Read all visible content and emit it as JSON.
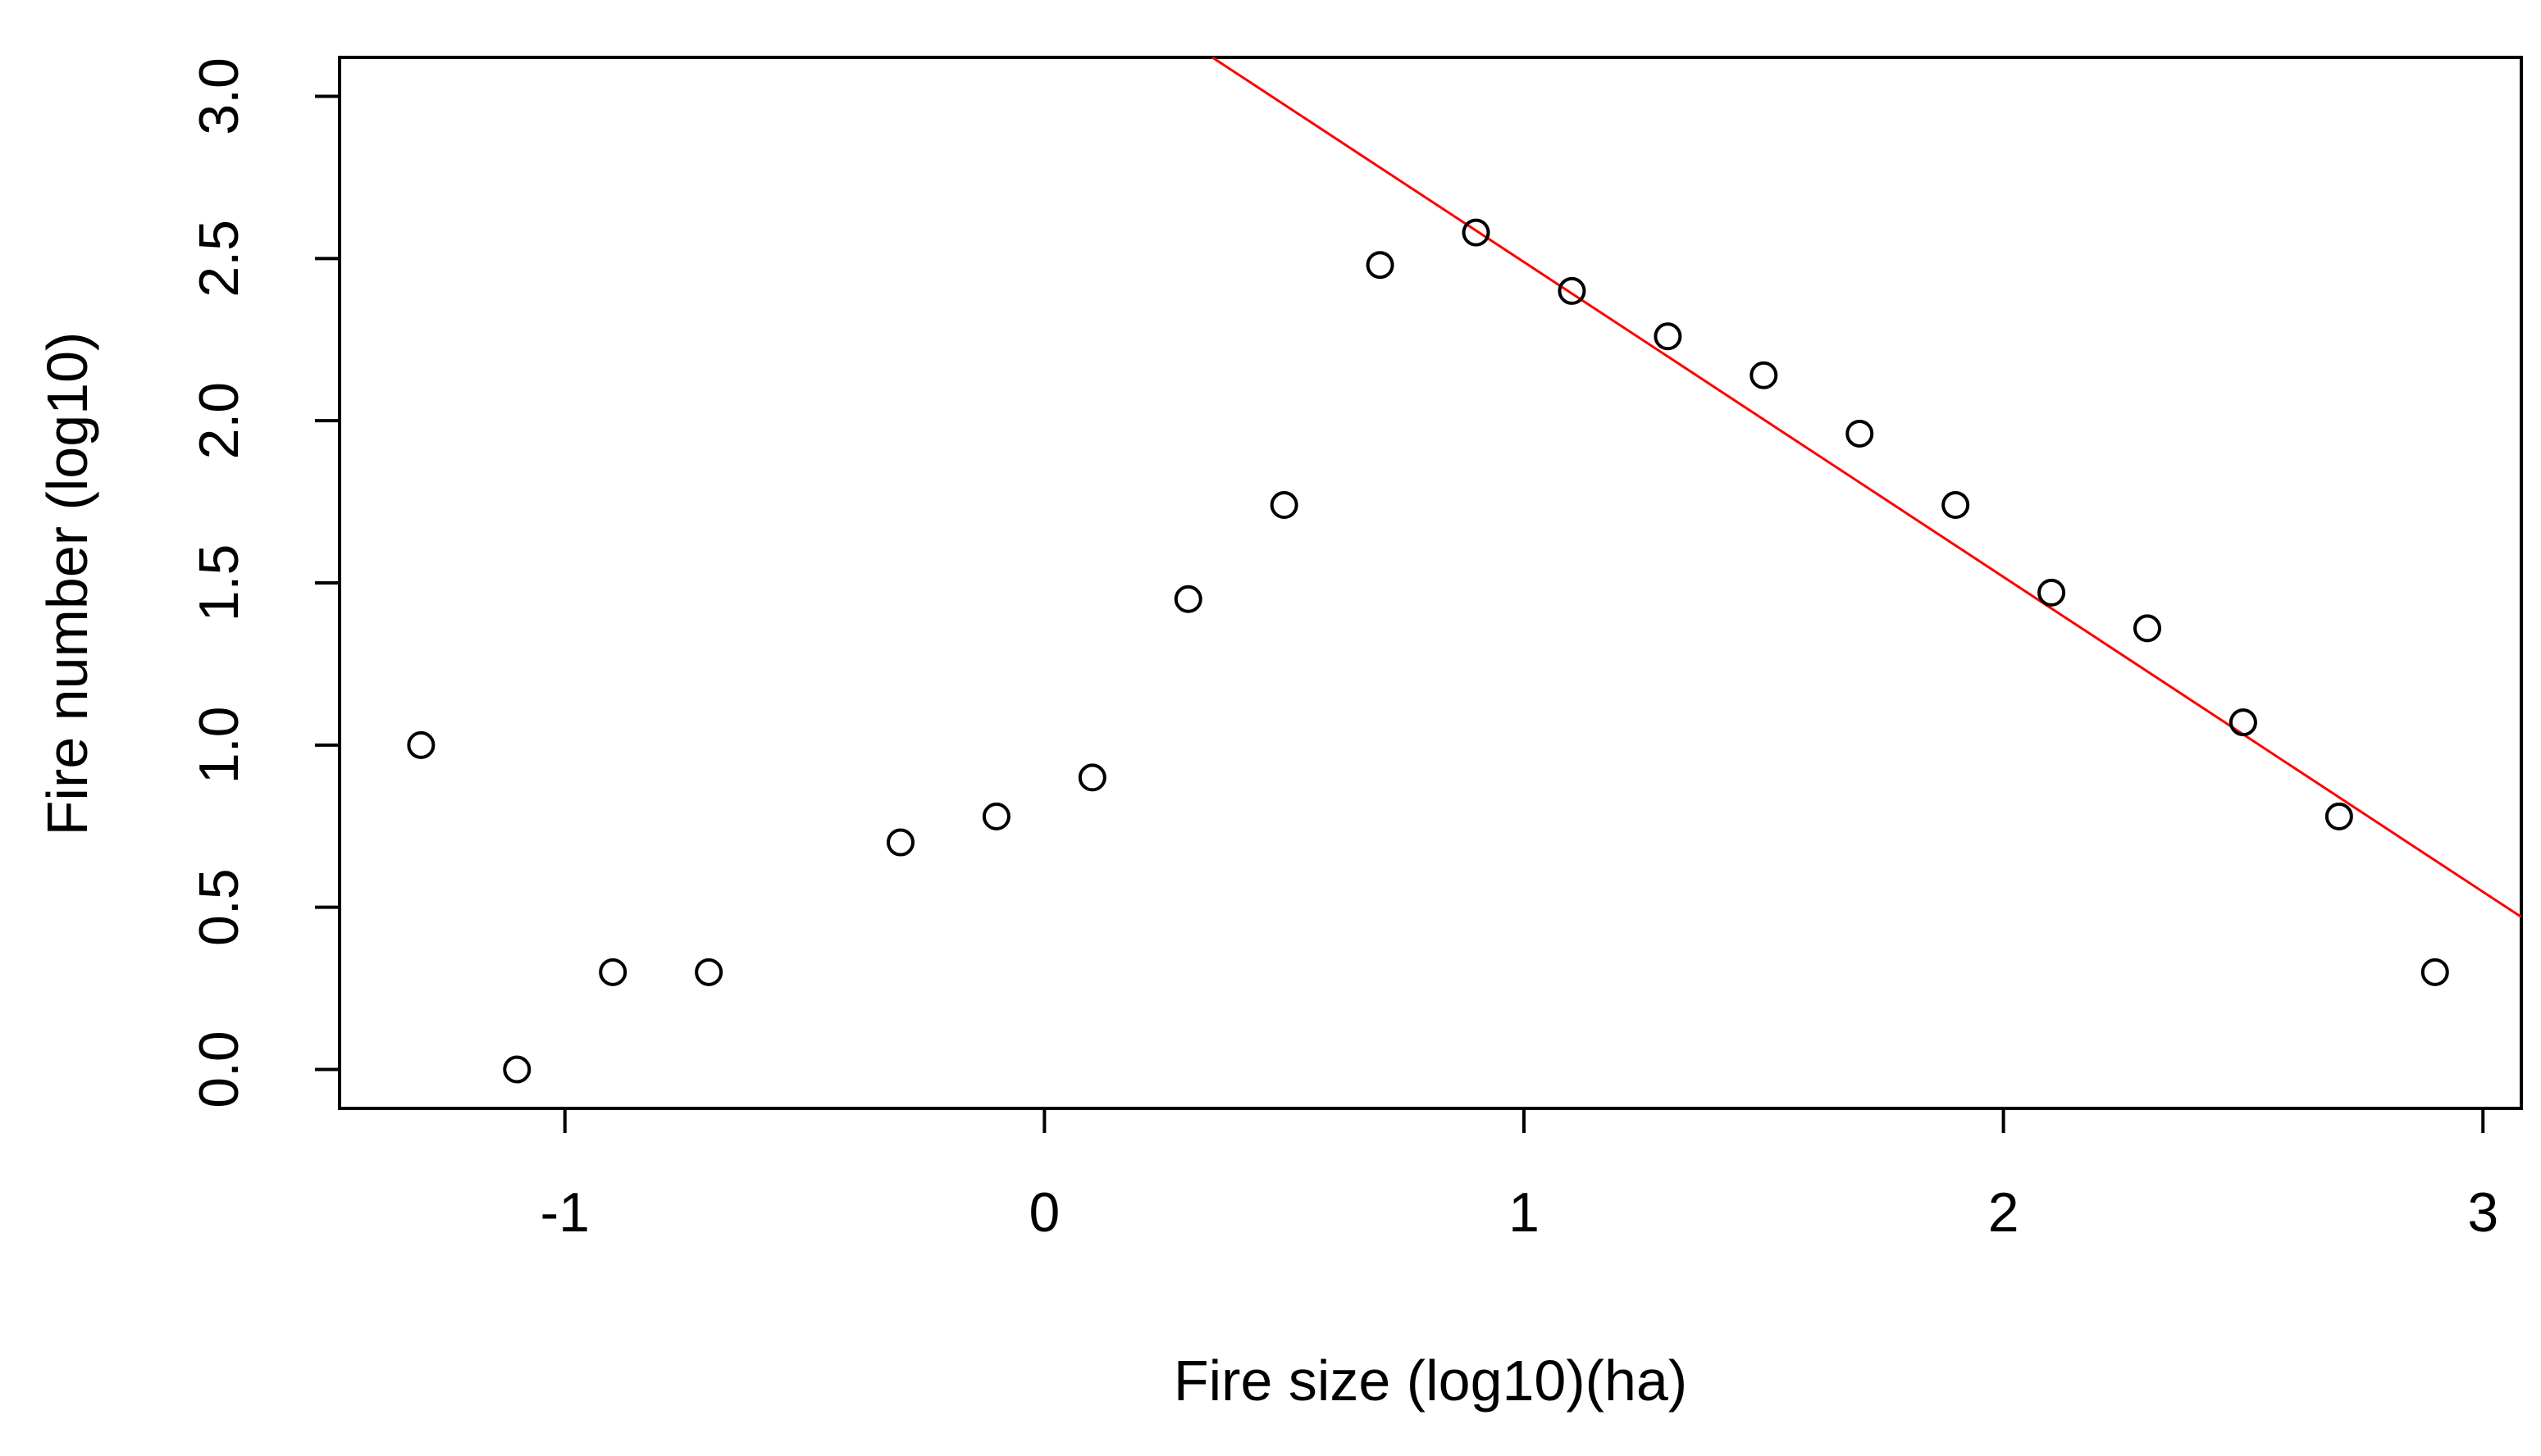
{
  "chart_data": {
    "type": "scatter",
    "title": "",
    "xlabel": "Fire size (log10)(ha)",
    "ylabel": "Fire number (log10)",
    "xlim": [
      -1.47,
      3.08
    ],
    "ylim": [
      -0.12,
      3.12
    ],
    "x_ticks": [
      -1,
      0,
      1,
      2,
      3
    ],
    "y_ticks": [
      0.0,
      0.5,
      1.0,
      1.5,
      2.0,
      2.5,
      3.0
    ],
    "x_tick_labels": [
      "-1",
      "0",
      "1",
      "2",
      "3"
    ],
    "y_tick_labels": [
      "0.0",
      "0.5",
      "1.0",
      "1.5",
      "2.0",
      "2.5",
      "3.0"
    ],
    "grid": false,
    "marker": "open-circle",
    "point_color": "#000000",
    "fit_line_color": "#ff0000",
    "points": {
      "x": [
        -1.3,
        -1.1,
        -0.9,
        -0.7,
        -0.3,
        -0.1,
        0.1,
        0.3,
        0.5,
        0.7,
        0.9,
        1.1,
        1.3,
        1.5,
        1.7,
        1.9,
        2.1,
        2.3,
        2.5,
        2.7,
        2.9
      ],
      "y": [
        1.0,
        0.0,
        0.3,
        0.3,
        0.7,
        0.78,
        0.9,
        1.45,
        1.74,
        2.48,
        2.58,
        2.4,
        2.26,
        2.14,
        1.96,
        1.74,
        1.47,
        1.36,
        1.07,
        0.78,
        0.3
      ]
    },
    "fit_line": {
      "x": [
        0.35,
        3.08
      ],
      "y": [
        3.12,
        0.47
      ]
    }
  }
}
